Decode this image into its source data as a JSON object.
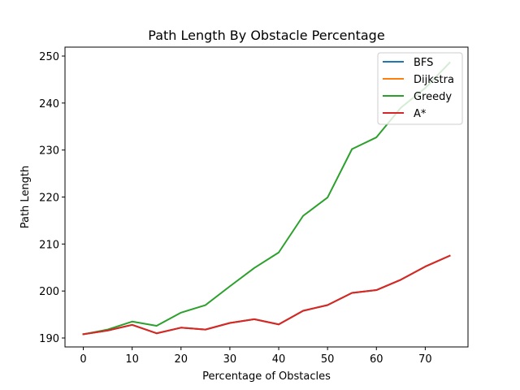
{
  "chart_data": {
    "type": "line",
    "title": "Path Length By Obstacle Percentage",
    "xlabel": "Percentage of Obstacles",
    "ylabel": "Path Length",
    "xlim": [
      -3.75,
      78.75
    ],
    "ylim": [
      188.1,
      251.9
    ],
    "xticks": [
      0,
      10,
      20,
      30,
      40,
      50,
      60,
      70
    ],
    "yticks": [
      190,
      200,
      210,
      220,
      230,
      240,
      250
    ],
    "grid": false,
    "legend_position": "top-right",
    "x": [
      0,
      5,
      10,
      15,
      20,
      25,
      30,
      35,
      40,
      45,
      50,
      55,
      60,
      65,
      70,
      75
    ],
    "series": [
      {
        "name": "BFS",
        "color": "#1f77b4",
        "values": [
          190.8,
          191.6,
          192.8,
          191.0,
          192.2,
          191.8,
          193.2,
          194.0,
          192.9,
          195.8,
          197.0,
          199.6,
          200.2,
          202.4,
          205.2,
          207.5
        ]
      },
      {
        "name": "Dijkstra",
        "color": "#ff7f0e",
        "values": [
          190.8,
          191.6,
          192.8,
          191.0,
          192.2,
          191.8,
          193.2,
          194.0,
          192.9,
          195.8,
          197.0,
          199.6,
          200.2,
          202.4,
          205.2,
          207.5
        ]
      },
      {
        "name": "Greedy",
        "color": "#2ca02c",
        "values": [
          190.8,
          191.8,
          193.5,
          192.6,
          195.4,
          197.0,
          201.0,
          204.9,
          208.2,
          216.0,
          219.9,
          230.2,
          232.7,
          239.0,
          243.2,
          248.6
        ]
      },
      {
        "name": "A*",
        "color": "#d62728",
        "values": [
          190.8,
          191.6,
          192.8,
          191.0,
          192.2,
          191.8,
          193.2,
          194.0,
          192.9,
          195.8,
          197.0,
          199.6,
          200.2,
          202.4,
          205.2,
          207.5
        ]
      }
    ]
  }
}
